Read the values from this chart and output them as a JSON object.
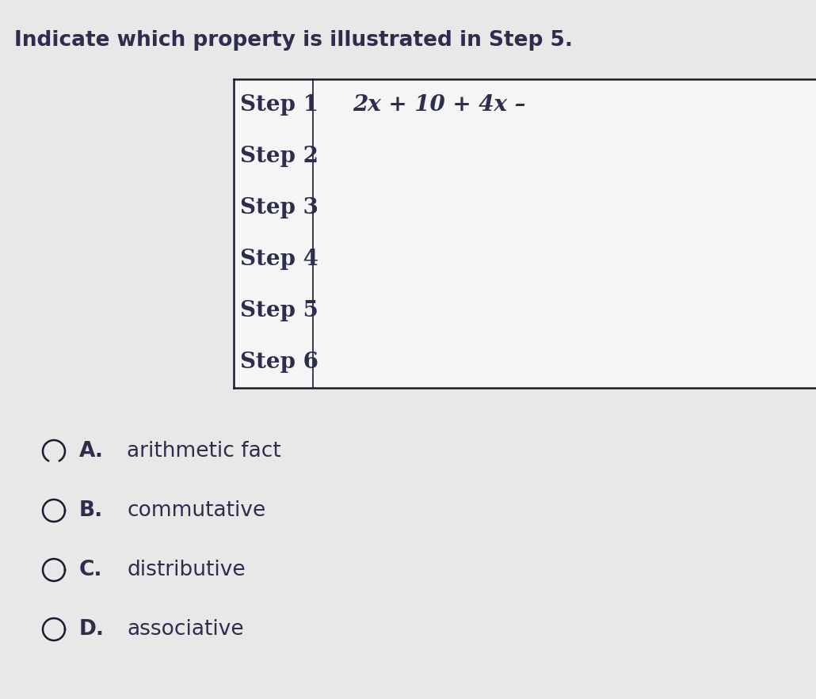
{
  "title": "Indicate which property is illustrated in Step 5.",
  "title_fontsize": 19,
  "text_color": "#2d2d4e",
  "background_color": "#e8e8e8",
  "table_bg": "#f0f0f0",
  "table_border_color": "#1a1a2e",
  "steps": [
    "Step 1",
    "Step 2",
    "Step 3",
    "Step 4",
    "Step 5",
    "Step 6"
  ],
  "step1_expr": "2x + 10 + 4x –",
  "steps_fontsize": 20,
  "expr_fontsize": 20,
  "options": [
    {
      "label": "A.",
      "text": "arithmetic fact"
    },
    {
      "label": "B.",
      "text": "commutative"
    },
    {
      "label": "C.",
      "text": "distributive"
    },
    {
      "label": "D.",
      "text": "associative"
    }
  ],
  "options_fontsize": 19,
  "selected_option": 0
}
